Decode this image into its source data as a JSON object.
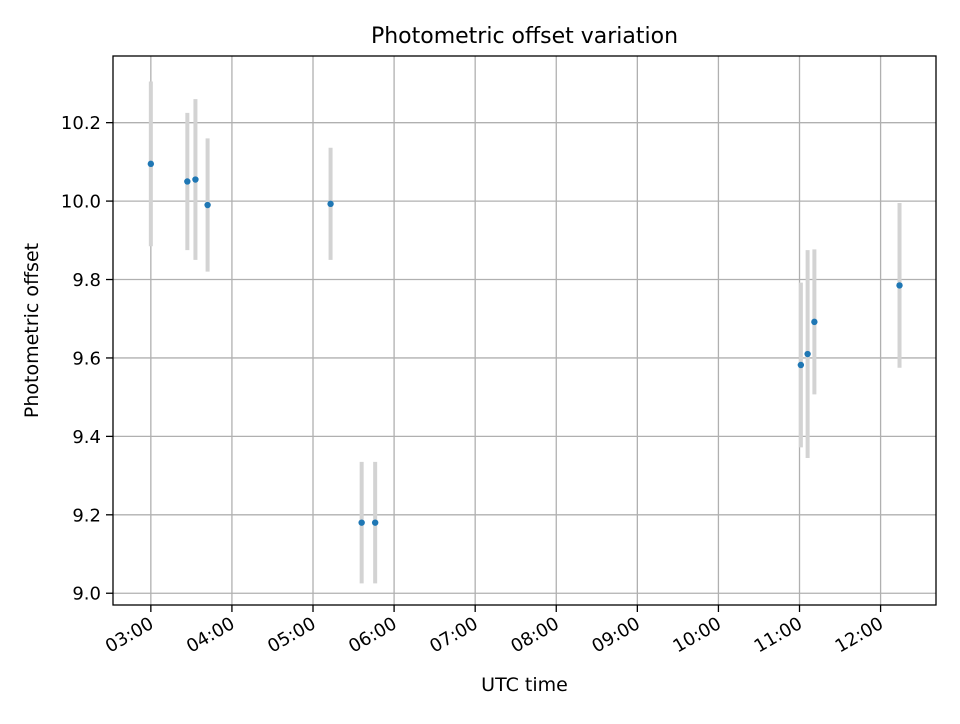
{
  "chart_data": {
    "type": "scatter",
    "title": "Photometric offset variation",
    "xlabel": "UTC time",
    "ylabel": "Photometric offset",
    "x_ticks": [
      "03:00",
      "04:00",
      "05:00",
      "06:00",
      "07:00",
      "08:00",
      "09:00",
      "10:00",
      "11:00",
      "12:00"
    ],
    "y_ticks": [
      "9.0",
      "9.2",
      "9.4",
      "9.6",
      "9.8",
      "10.0",
      "10.2"
    ],
    "x_tick_values": [
      "03:00",
      "04:00",
      "05:00",
      "06:00",
      "07:00",
      "08:00",
      "09:00",
      "10:00",
      "11:00",
      "12:00"
    ],
    "y_tick_values": [
      9.0,
      9.2,
      9.4,
      9.6,
      9.8,
      10.0,
      10.2
    ],
    "xlim": [
      "02:32",
      "12:41"
    ],
    "ylim": [
      8.97,
      10.37
    ],
    "grid": true,
    "colors": {
      "point": "#1f77b4",
      "errorbar": "#d3d3d3",
      "grid": "#b0b0b0"
    },
    "points": [
      {
        "x": "03:00",
        "y": 10.095,
        "yerr": 0.21
      },
      {
        "x": "03:27",
        "y": 10.05,
        "yerr": 0.175
      },
      {
        "x": "03:33",
        "y": 10.055,
        "yerr": 0.205
      },
      {
        "x": "03:42",
        "y": 9.99,
        "yerr": 0.17
      },
      {
        "x": "05:13",
        "y": 9.993,
        "yerr": 0.143
      },
      {
        "x": "05:36",
        "y": 9.18,
        "yerr": 0.155
      },
      {
        "x": "05:46",
        "y": 9.18,
        "yerr": 0.155
      },
      {
        "x": "11:01",
        "y": 9.582,
        "yerr": 0.21
      },
      {
        "x": "11:06",
        "y": 9.61,
        "yerr": 0.265
      },
      {
        "x": "11:11",
        "y": 9.692,
        "yerr": 0.185
      },
      {
        "x": "12:14",
        "y": 9.785,
        "yerr": 0.21
      }
    ]
  }
}
